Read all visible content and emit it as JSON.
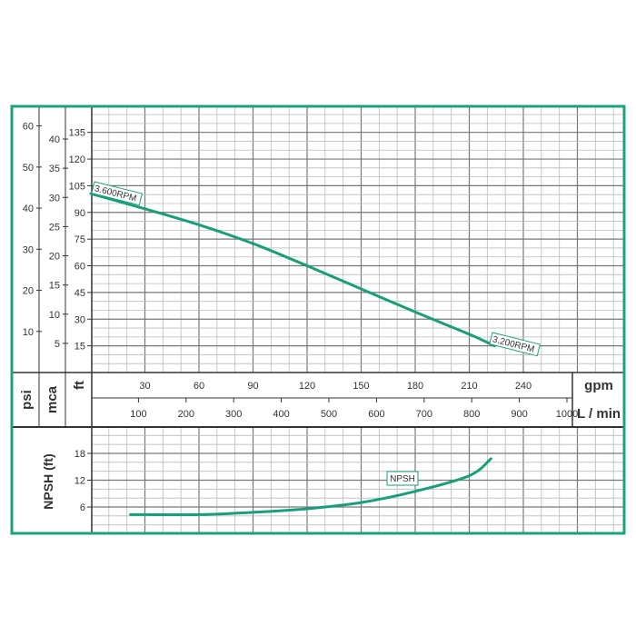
{
  "colors": {
    "border": "#1ba47c",
    "curve": "#1a9e7a",
    "grid": "#999999"
  },
  "chart_data": [
    {
      "type": "line",
      "x_unit_primary": "gpm",
      "x_unit_secondary": "L / min",
      "x_ticks_gpm": [
        30,
        60,
        90,
        120,
        150,
        180,
        210,
        240
      ],
      "x_ticks_lmin": [
        100,
        200,
        300,
        400,
        500,
        600,
        700,
        800,
        900,
        1000
      ],
      "y_units": [
        "psi",
        "mca",
        "ft"
      ],
      "y_ticks_psi": [
        10,
        20,
        30,
        40,
        50,
        60
      ],
      "y_ticks_mca": [
        5,
        10,
        15,
        20,
        25,
        30,
        35,
        40
      ],
      "y_ticks_ft": [
        15,
        30,
        45,
        60,
        75,
        90,
        105,
        120,
        135
      ],
      "xlim_gpm": [
        0,
        296
      ],
      "ylim_ft": [
        0,
        150
      ],
      "grid": true,
      "series": [
        {
          "labels": [
            "3.600RPM",
            "3.200RPM"
          ],
          "x_gpm": [
            0,
            30,
            60,
            90,
            120,
            150,
            180,
            210,
            224
          ],
          "y_ft": [
            100.5,
            92,
            83,
            72.5,
            60,
            47,
            34,
            21.5,
            15
          ]
        }
      ]
    },
    {
      "type": "line",
      "ylabel": "NPSH (ft)",
      "y_ticks_ft": [
        6,
        12,
        18
      ],
      "ylim_ft": [
        0,
        24
      ],
      "grid": true,
      "series": [
        {
          "name": "NPSH",
          "x_gpm": [
            22,
            60,
            90,
            120,
            150,
            180,
            210,
            222
          ],
          "y_ft": [
            4.3,
            4.3,
            4.8,
            5.6,
            7,
            9.5,
            13,
            16.8
          ]
        }
      ]
    }
  ]
}
